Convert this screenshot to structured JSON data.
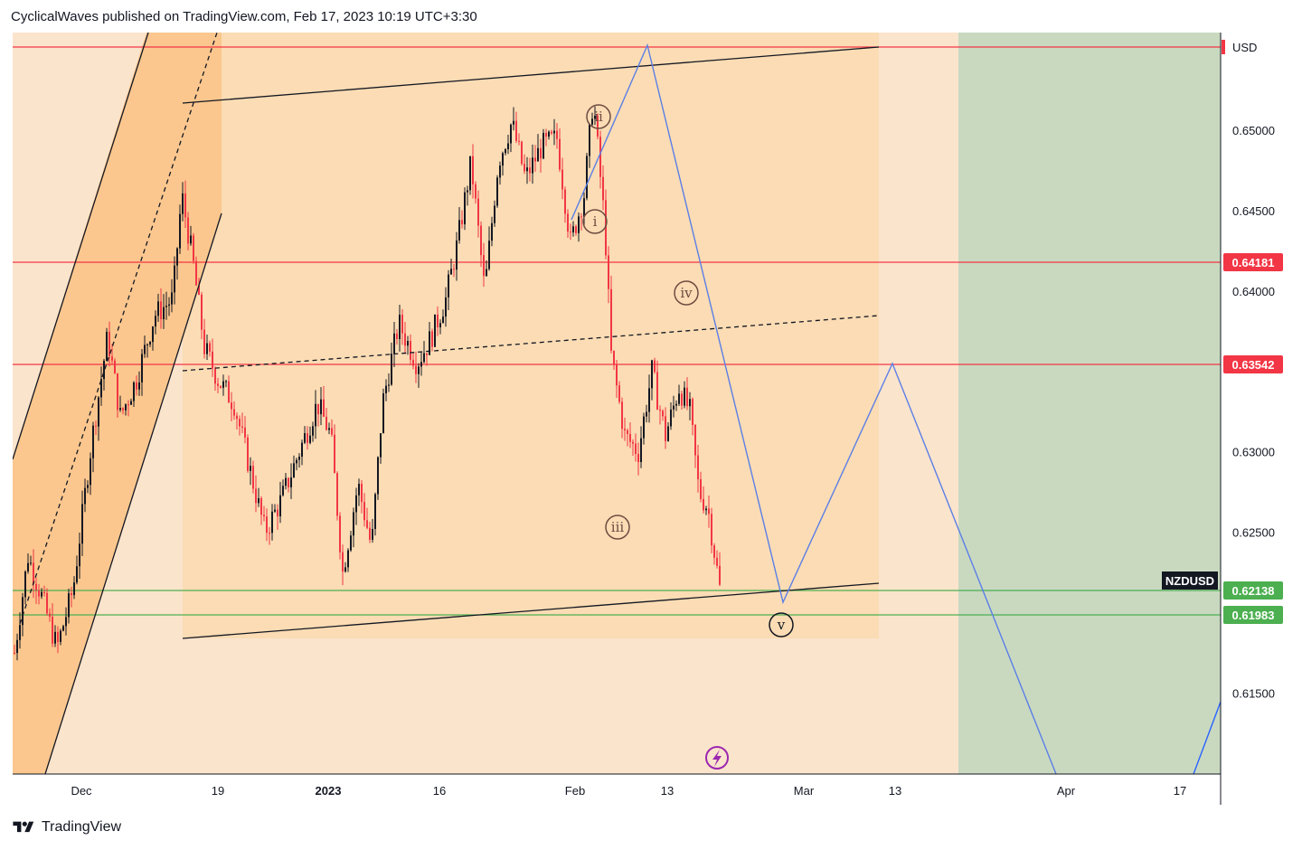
{
  "header": {
    "text": "CyclicalWaves published on TradingView.com, Feb 17, 2023 10:19 UTC+3:30"
  },
  "footer": {
    "brand": "TradingView",
    "logo_icon": "tradingview-logo-icon"
  },
  "chart_data": {
    "type": "candlestick",
    "symbol": "NZDUSD",
    "currency": "USD",
    "yaxis_ticks": [
      0.65,
      0.645,
      0.64,
      0.63,
      0.625,
      0.615
    ],
    "ylim": [
      0.6095,
      0.6555
    ],
    "xaxis_ticks": [
      "Dec",
      "19",
      "2023",
      "16",
      "Feb",
      "13",
      "Mar",
      "13",
      "Apr",
      "17"
    ],
    "price_lines": [
      {
        "value": 0.6555,
        "color": "#f23645",
        "label": ""
      },
      {
        "value": 0.64181,
        "color": "#f23645",
        "label": "0.64181"
      },
      {
        "value": 0.63542,
        "color": "#f23645",
        "label": "0.63542"
      },
      {
        "value": 0.62138,
        "color": "#4caf50",
        "label": "0.62138"
      },
      {
        "value": 0.61983,
        "color": "#4caf50",
        "label": "0.61983"
      }
    ],
    "symbol_tag": "NZDUSD",
    "wave_labels": [
      "i",
      "ii",
      "iii",
      "iv",
      "v"
    ],
    "colors": {
      "up": "#131722",
      "down": "#f23645",
      "projection": "#2962ff",
      "zone": "#fbe4cc",
      "channel_zone": "#fbd2a2",
      "green_zone": "#c9d9c0"
    }
  }
}
